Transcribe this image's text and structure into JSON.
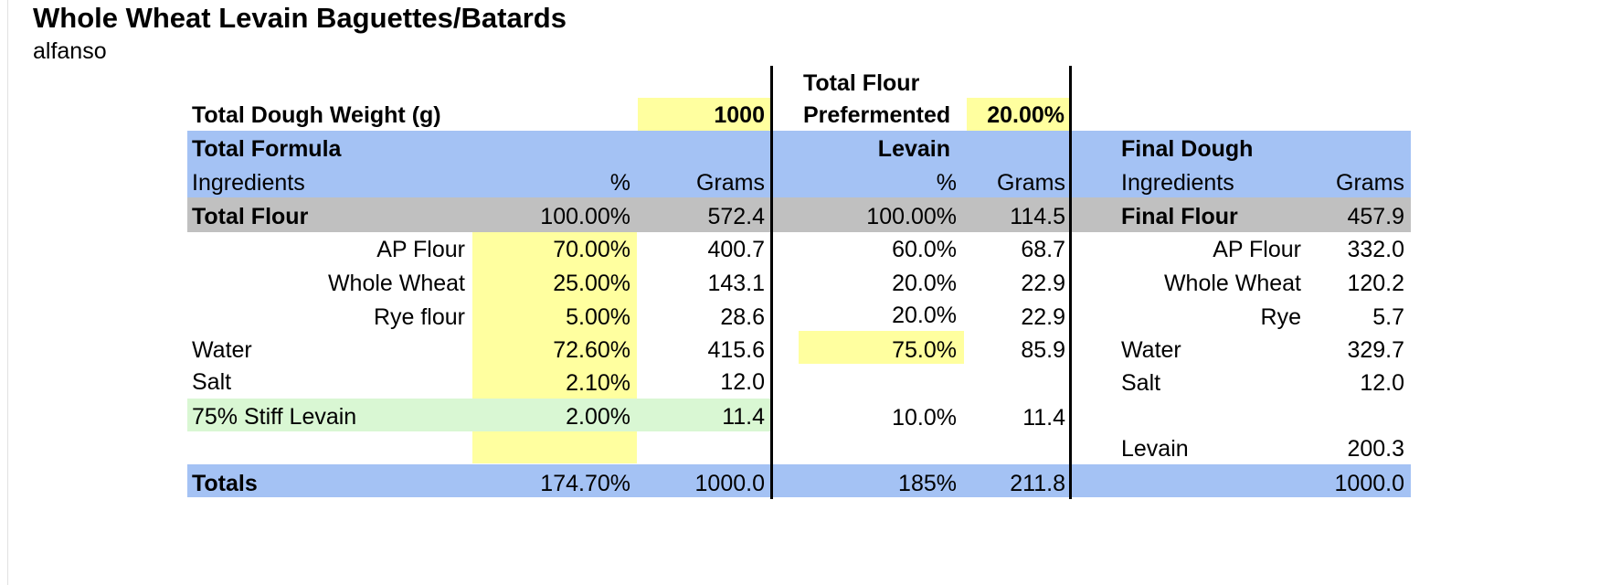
{
  "title": "Whole Wheat Levain Baguettes/Batards",
  "author": "alfanso",
  "header": {
    "dough_weight_label": "Total Dough Weight (g)",
    "dough_weight_value": "1000",
    "prefermented_label_1": "Total Flour",
    "prefermented_label_2": "Prefermented",
    "prefermented_value": "20.00%"
  },
  "sections": {
    "total_formula": "Total Formula",
    "levain": "Levain",
    "final_dough": "Final Dough"
  },
  "columns": {
    "ingredients": "Ingredients",
    "pct": "%",
    "grams": "Grams"
  },
  "rows": {
    "total_flour": {
      "name": "Total Flour",
      "pct": "100.00%",
      "grams": "572.4",
      "lev_pct": "100.00%",
      "lev_grams": "114.5",
      "fd_name": "Final Flour",
      "fd_grams": "457.9"
    },
    "ap_flour": {
      "name": "AP Flour",
      "pct": "70.00%",
      "grams": "400.7",
      "lev_pct": "60.0%",
      "lev_grams": "68.7",
      "fd_name": "AP Flour",
      "fd_grams": "332.0"
    },
    "whole_wheat": {
      "name": "Whole Wheat",
      "pct": "25.00%",
      "grams": "143.1",
      "lev_pct": "20.0%",
      "lev_grams": "22.9",
      "fd_name": "Whole Wheat",
      "fd_grams": "120.2"
    },
    "rye": {
      "name": "Rye flour",
      "pct": "5.00%",
      "grams": "28.6",
      "lev_pct": "20.0%",
      "lev_grams": "22.9",
      "fd_name": "Rye",
      "fd_grams": "5.7"
    },
    "water": {
      "name": "Water",
      "pct": "72.60%",
      "grams": "415.6",
      "lev_pct": "75.0%",
      "lev_grams": "85.9",
      "fd_name": "Water",
      "fd_grams": "329.7"
    },
    "salt": {
      "name": "Salt",
      "pct": "2.10%",
      "grams": "12.0",
      "fd_name": "Salt",
      "fd_grams": "12.0"
    },
    "stiff_levain": {
      "name": "75% Stiff Levain",
      "pct": "2.00%",
      "grams": "11.4",
      "lev_pct": "10.0%",
      "lev_grams": "11.4"
    },
    "levain": {
      "fd_name": "Levain",
      "fd_grams": "200.3"
    },
    "totals": {
      "name": "Totals",
      "pct": "174.70%",
      "grams": "1000.0",
      "lev_pct": "185%",
      "lev_grams": "211.8",
      "fd_grams": "1000.0"
    }
  },
  "colors": {
    "header_blue": "#a4c2f4",
    "total_grey": "#c0c0c0",
    "input_yellow": "#ffff9f",
    "levain_green": "#d9f7d3"
  }
}
